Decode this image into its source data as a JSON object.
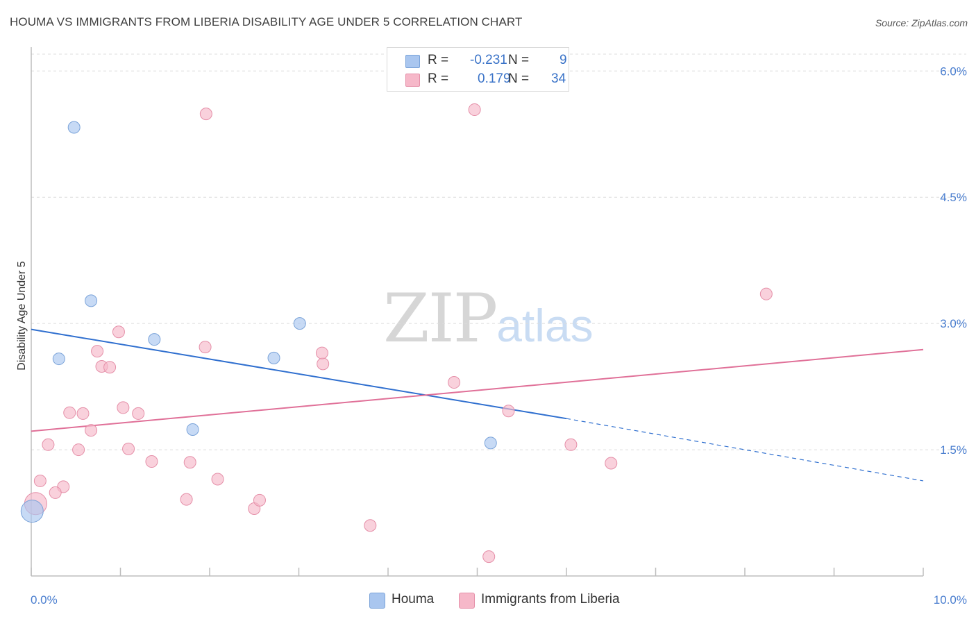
{
  "header": {
    "title": "HOUMA VS IMMIGRANTS FROM LIBERIA DISABILITY AGE UNDER 5 CORRELATION CHART",
    "source": "Source: ZipAtlas.com"
  },
  "watermark": {
    "zip": "ZIP",
    "atlas": "atlas"
  },
  "stats": [
    {
      "r_label": "R =",
      "r_value": "-0.231",
      "n_label": "N =",
      "n_value": "9",
      "color": "#a9c6ef"
    },
    {
      "r_label": "R =",
      "r_value": "0.179",
      "n_label": "N =",
      "n_value": "34",
      "color": "#f6b8c9"
    }
  ],
  "legend": [
    {
      "label": "Houma",
      "color": "#a9c6ef"
    },
    {
      "label": "Immigrants from Liberia",
      "color": "#f6b8c9"
    }
  ],
  "chart_data": {
    "type": "scatter",
    "title": "HOUMA VS IMMIGRANTS FROM LIBERIA DISABILITY AGE UNDER 5 CORRELATION CHART",
    "xlabel": "",
    "ylabel": "Disability Age Under 5",
    "xlim": [
      0,
      10
    ],
    "ylim": [
      0,
      6.2
    ],
    "x_tick_labels": [
      "0.0%",
      "10.0%"
    ],
    "y_ticks": [
      1.5,
      3.0,
      4.5,
      6.0
    ],
    "y_tick_labels": [
      "1.5%",
      "3.0%",
      "4.5%",
      "6.0%"
    ],
    "grid": "horizontal dashed",
    "legend_position": "bottom-center",
    "series": [
      {
        "name": "Houma",
        "color": "#a9c6ef",
        "stroke": "#7aa3d9",
        "trend_color": "#2f6fcf",
        "points": [
          [
            0.48,
            5.33
          ],
          [
            0.67,
            3.27
          ],
          [
            0.31,
            2.58
          ],
          [
            1.38,
            2.81
          ],
          [
            1.81,
            1.74
          ],
          [
            2.72,
            2.59
          ],
          [
            3.01,
            3.0
          ],
          [
            5.15,
            1.58
          ],
          [
            0.01,
            0.77
          ]
        ],
        "trend": {
          "x0": 0.0,
          "y0": 2.93,
          "x1": 6.0,
          "y1": 1.87,
          "x_dash_end": 10.0,
          "y_dash_end": 1.13
        }
      },
      {
        "name": "Immigrants from Liberia",
        "color": "#f6b8c9",
        "stroke": "#e58fa8",
        "trend_color": "#e07098",
        "points": [
          [
            1.96,
            5.49
          ],
          [
            4.97,
            5.54
          ],
          [
            1.95,
            2.72
          ],
          [
            0.98,
            2.9
          ],
          [
            0.74,
            2.67
          ],
          [
            0.79,
            2.49
          ],
          [
            0.88,
            2.48
          ],
          [
            3.27,
            2.52
          ],
          [
            3.26,
            2.65
          ],
          [
            4.74,
            2.3
          ],
          [
            1.03,
            2.0
          ],
          [
            0.43,
            1.94
          ],
          [
            0.58,
            1.93
          ],
          [
            1.2,
            1.93
          ],
          [
            0.67,
            1.73
          ],
          [
            5.35,
            1.96
          ],
          [
            0.19,
            1.56
          ],
          [
            0.53,
            1.5
          ],
          [
            1.09,
            1.51
          ],
          [
            1.35,
            1.36
          ],
          [
            1.78,
            1.35
          ],
          [
            6.05,
            1.56
          ],
          [
            6.5,
            1.34
          ],
          [
            8.24,
            3.35
          ],
          [
            0.1,
            1.13
          ],
          [
            0.36,
            1.06
          ],
          [
            0.27,
            0.99
          ],
          [
            2.09,
            1.15
          ],
          [
            1.74,
            0.91
          ],
          [
            2.5,
            0.8
          ],
          [
            2.56,
            0.9
          ],
          [
            3.8,
            0.6
          ],
          [
            5.13,
            0.23
          ],
          [
            0.05,
            0.86
          ]
        ],
        "trend": {
          "x0": 0.0,
          "y0": 1.72,
          "x1": 10.0,
          "y1": 2.69
        }
      }
    ]
  }
}
